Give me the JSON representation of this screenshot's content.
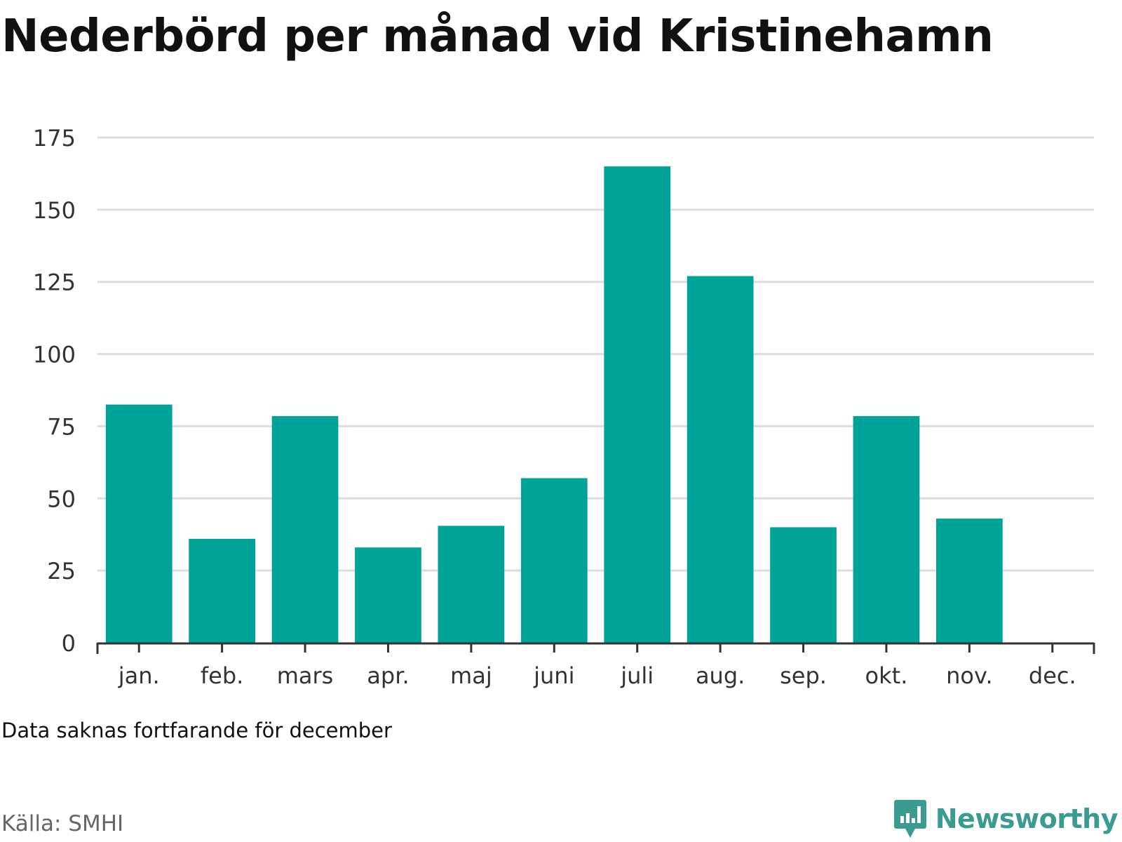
{
  "title": "Nederbörd per månad vid Kristinehamn",
  "note": "Data saknas fortfarande för december",
  "source": "Källa: SMHI",
  "brand": {
    "name": "Newsworthy",
    "icon": "newsworthy-logo-icon",
    "color": "#3a9b91"
  },
  "colors": {
    "bar": "#00a398",
    "grid": "#dddddd",
    "axis": "#333333"
  },
  "chart_data": {
    "type": "bar",
    "title": "Nederbörd per månad vid Kristinehamn",
    "xlabel": "",
    "ylabel": "",
    "categories": [
      "jan.",
      "feb.",
      "mars",
      "apr.",
      "maj",
      "juni",
      "juli",
      "aug.",
      "sep.",
      "okt.",
      "nov.",
      "dec."
    ],
    "values": [
      82.5,
      36,
      78.5,
      33,
      40.5,
      57,
      165,
      127,
      40,
      78.5,
      43,
      null
    ],
    "ylim": [
      0,
      175
    ],
    "yticks": [
      0,
      25,
      50,
      75,
      100,
      125,
      150,
      175
    ],
    "grid": true,
    "legend": "none"
  }
}
